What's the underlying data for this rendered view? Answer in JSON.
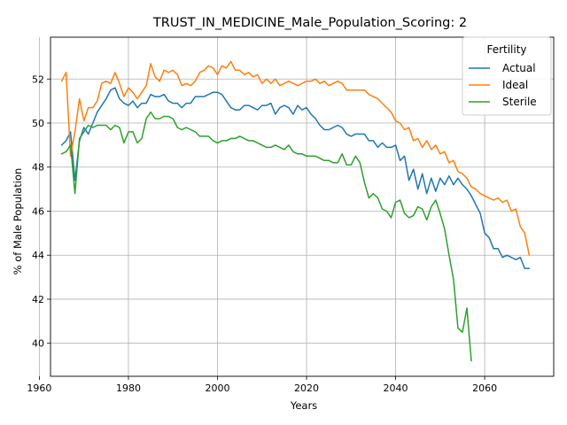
{
  "chart_data": {
    "type": "line",
    "title": "TRUST_IN_MEDICINE_Male_Population_Scoring: 2",
    "xlabel": "Years",
    "ylabel": "% of Male Population",
    "xlim": [
      1962.5,
      2075.5
    ],
    "ylim": [
      38.5,
      53.9
    ],
    "xticks": [
      1960,
      1980,
      2000,
      2020,
      2040,
      2060
    ],
    "yticks": [
      40,
      42,
      44,
      46,
      48,
      50,
      52
    ],
    "grid": true,
    "legend": {
      "title": "Fertility",
      "placement": "upper right"
    },
    "series": [
      {
        "name": "Actual",
        "color": "#1f77b4",
        "x": [
          1965,
          1966,
          1967,
          1968,
          1969,
          1970,
          1971,
          1972,
          1973,
          1974,
          1975,
          1976,
          1977,
          1978,
          1979,
          1980,
          1981,
          1982,
          1983,
          1984,
          1985,
          1986,
          1987,
          1988,
          1989,
          1990,
          1991,
          1992,
          1993,
          1994,
          1995,
          1996,
          1997,
          1998,
          1999,
          2000,
          2001,
          2002,
          2003,
          2004,
          2005,
          2006,
          2007,
          2008,
          2009,
          2010,
          2011,
          2012,
          2013,
          2014,
          2015,
          2016,
          2017,
          2018,
          2019,
          2020,
          2021,
          2022,
          2023,
          2024,
          2025,
          2026,
          2027,
          2028,
          2029,
          2030,
          2031,
          2032,
          2033,
          2034,
          2035,
          2036,
          2037,
          2038,
          2039,
          2040,
          2041,
          2042,
          2043,
          2044,
          2045,
          2046,
          2047,
          2048,
          2049,
          2050,
          2051,
          2052,
          2053,
          2054,
          2055,
          2056,
          2057,
          2058,
          2059,
          2060,
          2061,
          2062,
          2063,
          2064,
          2065,
          2066,
          2067,
          2068,
          2069,
          2070
        ],
        "y": [
          49.0,
          49.2,
          49.6,
          47.4,
          49.2,
          49.8,
          49.5,
          50.0,
          50.5,
          50.8,
          51.1,
          51.5,
          51.6,
          51.1,
          50.9,
          50.8,
          51.0,
          50.7,
          50.9,
          50.9,
          51.3,
          51.2,
          51.2,
          51.3,
          51.0,
          50.9,
          50.9,
          50.7,
          50.9,
          50.9,
          51.2,
          51.2,
          51.2,
          51.3,
          51.4,
          51.4,
          51.3,
          51.0,
          50.7,
          50.6,
          50.6,
          50.8,
          50.8,
          50.7,
          50.6,
          50.8,
          50.8,
          50.9,
          50.4,
          50.7,
          50.8,
          50.7,
          50.4,
          50.8,
          50.6,
          50.7,
          50.4,
          50.2,
          49.9,
          49.7,
          49.7,
          49.8,
          49.9,
          49.8,
          49.5,
          49.4,
          49.5,
          49.5,
          49.5,
          49.2,
          49.2,
          48.9,
          49.1,
          48.9,
          48.9,
          49.0,
          48.3,
          48.5,
          47.4,
          47.9,
          47.0,
          47.7,
          46.8,
          47.5,
          46.9,
          47.5,
          47.2,
          47.6,
          47.2,
          47.5,
          47.2,
          47.0,
          46.7,
          46.3,
          45.9,
          45.0,
          44.8,
          44.3,
          44.3,
          43.9,
          44.0,
          43.9,
          43.8,
          43.9,
          43.4,
          43.4
        ]
      },
      {
        "name": "Ideal",
        "color": "#ff7f0e",
        "x": [
          1965,
          1966,
          1967,
          1968,
          1969,
          1970,
          1971,
          1972,
          1973,
          1974,
          1975,
          1976,
          1977,
          1978,
          1979,
          1980,
          1981,
          1982,
          1983,
          1984,
          1985,
          1986,
          1987,
          1988,
          1989,
          1990,
          1991,
          1992,
          1993,
          1994,
          1995,
          1996,
          1997,
          1998,
          1999,
          2000,
          2001,
          2002,
          2003,
          2004,
          2005,
          2006,
          2007,
          2008,
          2009,
          2010,
          2011,
          2012,
          2013,
          2014,
          2015,
          2016,
          2017,
          2018,
          2019,
          2020,
          2021,
          2022,
          2023,
          2024,
          2025,
          2026,
          2027,
          2028,
          2029,
          2030,
          2031,
          2032,
          2033,
          2034,
          2035,
          2036,
          2037,
          2038,
          2039,
          2040,
          2041,
          2042,
          2043,
          2044,
          2045,
          2046,
          2047,
          2048,
          2049,
          2050,
          2051,
          2052,
          2053,
          2054,
          2055,
          2056,
          2057,
          2058,
          2059,
          2060,
          2061,
          2062,
          2063,
          2064,
          2065,
          2066,
          2067,
          2068,
          2069,
          2070
        ],
        "y": [
          51.9,
          52.3,
          48.5,
          49.6,
          51.1,
          50.1,
          50.7,
          50.7,
          51.0,
          51.8,
          51.9,
          51.8,
          52.3,
          51.8,
          51.2,
          51.6,
          51.4,
          51.1,
          51.4,
          51.7,
          52.7,
          52.1,
          51.9,
          52.4,
          52.3,
          52.4,
          52.2,
          51.7,
          51.8,
          51.7,
          51.9,
          52.3,
          52.4,
          52.6,
          52.5,
          52.2,
          52.6,
          52.5,
          52.8,
          52.4,
          52.4,
          52.2,
          52.3,
          52.1,
          52.2,
          51.8,
          52.0,
          51.8,
          52.0,
          51.7,
          51.8,
          51.9,
          51.8,
          51.7,
          51.8,
          51.9,
          51.9,
          52.0,
          51.8,
          51.9,
          51.7,
          51.8,
          51.9,
          51.8,
          51.5,
          51.5,
          51.5,
          51.5,
          51.5,
          51.3,
          51.2,
          51.1,
          50.9,
          50.7,
          50.5,
          50.1,
          50.0,
          49.7,
          49.8,
          49.2,
          49.3,
          48.9,
          49.2,
          48.8,
          49.0,
          48.6,
          48.7,
          48.2,
          48.3,
          47.8,
          47.7,
          47.5,
          47.1,
          47.0,
          46.8,
          46.7,
          46.6,
          46.5,
          46.6,
          46.4,
          46.5,
          46.0,
          46.1,
          45.3,
          45.0,
          44.0
        ]
      },
      {
        "name": "Sterile",
        "color": "#2ca02c",
        "x": [
          1965,
          1966,
          1967,
          1968,
          1969,
          1970,
          1971,
          1972,
          1973,
          1974,
          1975,
          1976,
          1977,
          1978,
          1979,
          1980,
          1981,
          1982,
          1983,
          1984,
          1985,
          1986,
          1987,
          1988,
          1989,
          1990,
          1991,
          1992,
          1993,
          1994,
          1995,
          1996,
          1997,
          1998,
          1999,
          2000,
          2001,
          2002,
          2003,
          2004,
          2005,
          2006,
          2007,
          2008,
          2009,
          2010,
          2011,
          2012,
          2013,
          2014,
          2015,
          2016,
          2017,
          2018,
          2019,
          2020,
          2021,
          2022,
          2023,
          2024,
          2025,
          2026,
          2027,
          2028,
          2029,
          2030,
          2031,
          2032,
          2033,
          2034,
          2035,
          2036,
          2037,
          2038,
          2039,
          2040,
          2041,
          2042,
          2043,
          2044,
          2045,
          2046,
          2047,
          2048,
          2049,
          2050,
          2051,
          2052,
          2053,
          2054,
          2055,
          2056,
          2057
        ],
        "y": [
          48.6,
          48.7,
          49.0,
          46.8,
          49.3,
          49.6,
          49.9,
          49.8,
          49.9,
          49.9,
          49.9,
          49.7,
          49.9,
          49.8,
          49.1,
          49.6,
          49.6,
          49.1,
          49.3,
          50.2,
          50.5,
          50.2,
          50.2,
          50.3,
          50.3,
          50.2,
          49.8,
          49.7,
          49.8,
          49.7,
          49.6,
          49.4,
          49.4,
          49.4,
          49.2,
          49.1,
          49.2,
          49.2,
          49.3,
          49.3,
          49.4,
          49.3,
          49.2,
          49.2,
          49.1,
          49.0,
          48.9,
          48.9,
          49.0,
          48.9,
          48.8,
          49.0,
          48.7,
          48.6,
          48.6,
          48.5,
          48.5,
          48.5,
          48.4,
          48.3,
          48.3,
          48.2,
          48.2,
          48.6,
          48.1,
          48.1,
          48.5,
          48.2,
          47.3,
          46.6,
          46.8,
          46.6,
          46.1,
          46.0,
          45.7,
          46.4,
          46.5,
          45.9,
          45.7,
          45.8,
          46.2,
          46.1,
          45.6,
          46.2,
          46.5,
          45.9,
          45.2,
          44.0,
          42.9,
          40.7,
          40.5,
          41.6,
          39.2
        ]
      }
    ]
  }
}
